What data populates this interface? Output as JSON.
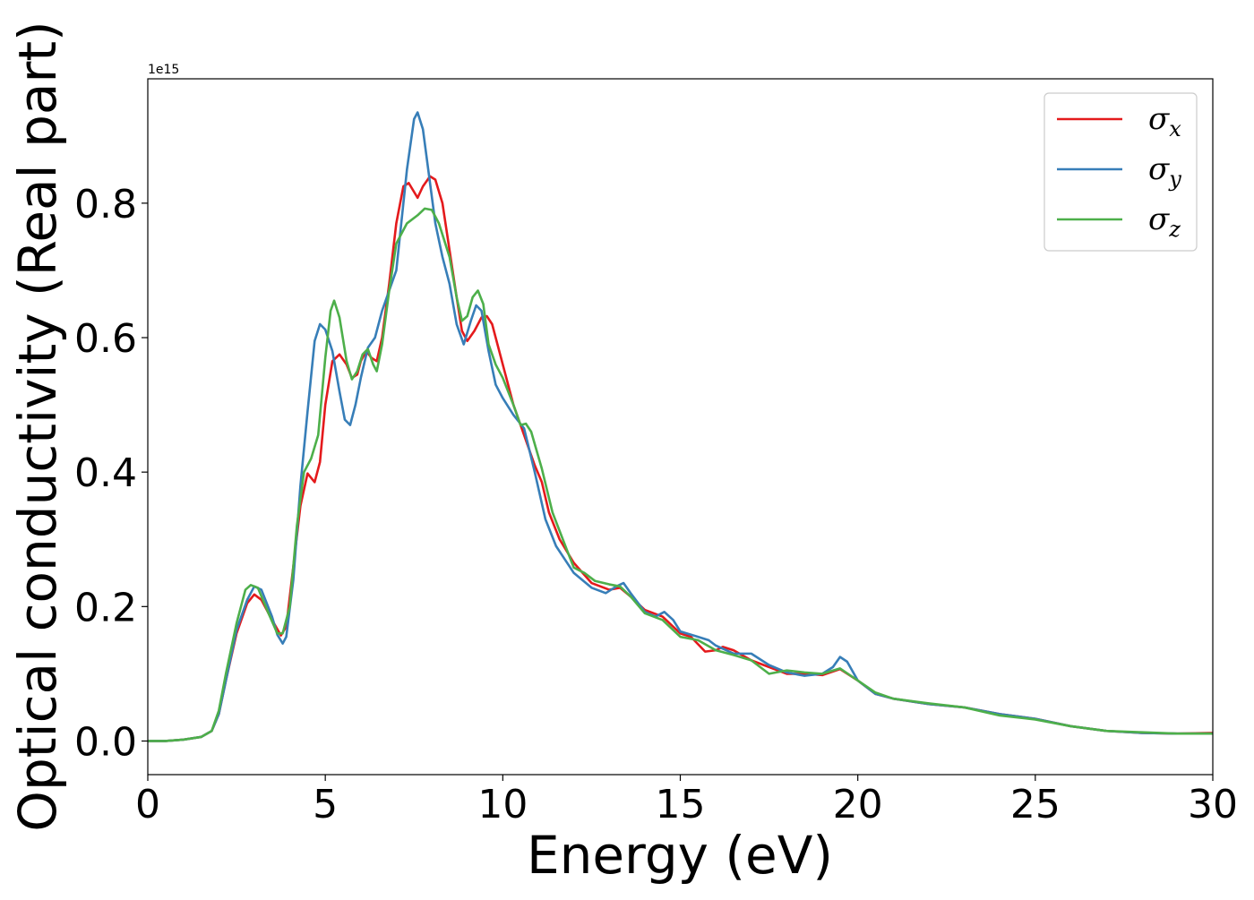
{
  "chart_data": {
    "type": "line",
    "title": "",
    "xlabel": "Energy (eV)",
    "ylabel": "Optical conductivity (Real part)",
    "y_offset_label": "1e15",
    "xlim": [
      0,
      30
    ],
    "ylim": [
      -0.05,
      0.985
    ],
    "xticks": [
      0,
      5,
      10,
      15,
      20,
      25,
      30
    ],
    "xtick_labels": [
      "0",
      "5",
      "10",
      "15",
      "20",
      "25",
      "30"
    ],
    "yticks": [
      0.0,
      0.2,
      0.4,
      0.6,
      0.8
    ],
    "ytick_labels": [
      "0.0",
      "0.2",
      "0.4",
      "0.6",
      "0.8"
    ],
    "grid": false,
    "legend_position": "top-right",
    "series": [
      {
        "name": "σx",
        "name_base": "σ",
        "name_sub": "x",
        "color": "#e41a1c",
        "points": [
          [
            0,
            0.0
          ],
          [
            0.5,
            0.0
          ],
          [
            1.0,
            0.002
          ],
          [
            1.5,
            0.006
          ],
          [
            1.8,
            0.015
          ],
          [
            2.0,
            0.04
          ],
          [
            2.2,
            0.09
          ],
          [
            2.5,
            0.16
          ],
          [
            2.8,
            0.205
          ],
          [
            3.0,
            0.218
          ],
          [
            3.2,
            0.21
          ],
          [
            3.5,
            0.18
          ],
          [
            3.75,
            0.157
          ],
          [
            3.9,
            0.17
          ],
          [
            4.1,
            0.26
          ],
          [
            4.3,
            0.35
          ],
          [
            4.5,
            0.398
          ],
          [
            4.7,
            0.385
          ],
          [
            4.85,
            0.415
          ],
          [
            5.0,
            0.5
          ],
          [
            5.2,
            0.565
          ],
          [
            5.4,
            0.575
          ],
          [
            5.6,
            0.56
          ],
          [
            5.75,
            0.54
          ],
          [
            5.9,
            0.545
          ],
          [
            6.0,
            0.565
          ],
          [
            6.15,
            0.58
          ],
          [
            6.3,
            0.57
          ],
          [
            6.45,
            0.565
          ],
          [
            6.6,
            0.6
          ],
          [
            6.8,
            0.68
          ],
          [
            7.0,
            0.77
          ],
          [
            7.2,
            0.825
          ],
          [
            7.35,
            0.83
          ],
          [
            7.6,
            0.808
          ],
          [
            7.75,
            0.825
          ],
          [
            7.95,
            0.84
          ],
          [
            8.1,
            0.835
          ],
          [
            8.3,
            0.8
          ],
          [
            8.5,
            0.73
          ],
          [
            8.7,
            0.66
          ],
          [
            8.85,
            0.61
          ],
          [
            9.0,
            0.595
          ],
          [
            9.2,
            0.61
          ],
          [
            9.4,
            0.63
          ],
          [
            9.55,
            0.632
          ],
          [
            9.7,
            0.62
          ],
          [
            10.0,
            0.56
          ],
          [
            10.3,
            0.5
          ],
          [
            10.6,
            0.455
          ],
          [
            10.9,
            0.41
          ],
          [
            11.1,
            0.385
          ],
          [
            11.3,
            0.34
          ],
          [
            11.6,
            0.3
          ],
          [
            12.0,
            0.265
          ],
          [
            12.5,
            0.235
          ],
          [
            13.0,
            0.225
          ],
          [
            13.3,
            0.228
          ],
          [
            13.6,
            0.215
          ],
          [
            14.0,
            0.195
          ],
          [
            14.5,
            0.185
          ],
          [
            15.0,
            0.16
          ],
          [
            15.3,
            0.155
          ],
          [
            15.7,
            0.133
          ],
          [
            16.0,
            0.135
          ],
          [
            16.2,
            0.14
          ],
          [
            16.5,
            0.135
          ],
          [
            17.0,
            0.12
          ],
          [
            17.5,
            0.11
          ],
          [
            18.0,
            0.1
          ],
          [
            18.5,
            0.1
          ],
          [
            19.0,
            0.098
          ],
          [
            19.5,
            0.107
          ],
          [
            20.0,
            0.09
          ],
          [
            20.5,
            0.07
          ],
          [
            21.0,
            0.063
          ],
          [
            22.0,
            0.055
          ],
          [
            23.0,
            0.05
          ],
          [
            24.0,
            0.04
          ],
          [
            25.0,
            0.033
          ],
          [
            26.0,
            0.022
          ],
          [
            27.0,
            0.015
          ],
          [
            28.0,
            0.012
          ],
          [
            29.0,
            0.011
          ],
          [
            30.0,
            0.012
          ]
        ]
      },
      {
        "name": "σy",
        "name_base": "σ",
        "name_sub": "y",
        "color": "#377eb8",
        "points": [
          [
            0,
            0.0
          ],
          [
            0.5,
            0.0
          ],
          [
            1.0,
            0.002
          ],
          [
            1.5,
            0.006
          ],
          [
            1.8,
            0.015
          ],
          [
            2.0,
            0.04
          ],
          [
            2.2,
            0.09
          ],
          [
            2.5,
            0.165
          ],
          [
            2.8,
            0.21
          ],
          [
            3.0,
            0.23
          ],
          [
            3.2,
            0.225
          ],
          [
            3.5,
            0.185
          ],
          [
            3.65,
            0.158
          ],
          [
            3.8,
            0.145
          ],
          [
            3.9,
            0.155
          ],
          [
            4.1,
            0.24
          ],
          [
            4.3,
            0.38
          ],
          [
            4.5,
            0.49
          ],
          [
            4.7,
            0.595
          ],
          [
            4.85,
            0.62
          ],
          [
            5.0,
            0.612
          ],
          [
            5.2,
            0.58
          ],
          [
            5.4,
            0.52
          ],
          [
            5.55,
            0.478
          ],
          [
            5.7,
            0.47
          ],
          [
            5.85,
            0.5
          ],
          [
            6.0,
            0.54
          ],
          [
            6.2,
            0.585
          ],
          [
            6.4,
            0.6
          ],
          [
            6.6,
            0.64
          ],
          [
            6.8,
            0.67
          ],
          [
            7.0,
            0.7
          ],
          [
            7.1,
            0.75
          ],
          [
            7.3,
            0.85
          ],
          [
            7.5,
            0.925
          ],
          [
            7.6,
            0.935
          ],
          [
            7.75,
            0.91
          ],
          [
            7.9,
            0.85
          ],
          [
            8.1,
            0.77
          ],
          [
            8.3,
            0.72
          ],
          [
            8.5,
            0.68
          ],
          [
            8.7,
            0.62
          ],
          [
            8.9,
            0.59
          ],
          [
            9.1,
            0.625
          ],
          [
            9.25,
            0.648
          ],
          [
            9.4,
            0.64
          ],
          [
            9.6,
            0.58
          ],
          [
            9.8,
            0.53
          ],
          [
            10.0,
            0.51
          ],
          [
            10.3,
            0.485
          ],
          [
            10.6,
            0.465
          ],
          [
            10.9,
            0.4
          ],
          [
            11.2,
            0.33
          ],
          [
            11.5,
            0.29
          ],
          [
            12.0,
            0.25
          ],
          [
            12.5,
            0.228
          ],
          [
            12.9,
            0.22
          ],
          [
            13.2,
            0.23
          ],
          [
            13.4,
            0.235
          ],
          [
            13.6,
            0.22
          ],
          [
            14.0,
            0.192
          ],
          [
            14.3,
            0.185
          ],
          [
            14.55,
            0.192
          ],
          [
            14.8,
            0.18
          ],
          [
            15.0,
            0.163
          ],
          [
            15.5,
            0.155
          ],
          [
            15.8,
            0.15
          ],
          [
            16.0,
            0.142
          ],
          [
            16.5,
            0.13
          ],
          [
            17.0,
            0.13
          ],
          [
            17.5,
            0.113
          ],
          [
            18.0,
            0.102
          ],
          [
            18.5,
            0.097
          ],
          [
            19.0,
            0.1
          ],
          [
            19.3,
            0.11
          ],
          [
            19.5,
            0.125
          ],
          [
            19.7,
            0.118
          ],
          [
            20.0,
            0.09
          ],
          [
            20.5,
            0.07
          ],
          [
            21.0,
            0.063
          ],
          [
            22.0,
            0.055
          ],
          [
            23.0,
            0.05
          ],
          [
            24.0,
            0.04
          ],
          [
            25.0,
            0.033
          ],
          [
            26.0,
            0.022
          ],
          [
            27.0,
            0.015
          ],
          [
            28.0,
            0.012
          ],
          [
            29.0,
            0.011
          ],
          [
            30.0,
            0.011
          ]
        ]
      },
      {
        "name": "σz",
        "name_base": "σ",
        "name_sub": "z",
        "color": "#4daf4a",
        "points": [
          [
            0,
            0.0
          ],
          [
            0.5,
            0.0
          ],
          [
            1.0,
            0.002
          ],
          [
            1.5,
            0.006
          ],
          [
            1.8,
            0.015
          ],
          [
            2.0,
            0.045
          ],
          [
            2.2,
            0.1
          ],
          [
            2.5,
            0.175
          ],
          [
            2.75,
            0.225
          ],
          [
            2.9,
            0.232
          ],
          [
            3.1,
            0.228
          ],
          [
            3.4,
            0.19
          ],
          [
            3.65,
            0.16
          ],
          [
            3.8,
            0.16
          ],
          [
            4.0,
            0.2
          ],
          [
            4.2,
            0.32
          ],
          [
            4.4,
            0.4
          ],
          [
            4.6,
            0.42
          ],
          [
            4.8,
            0.455
          ],
          [
            5.0,
            0.57
          ],
          [
            5.15,
            0.64
          ],
          [
            5.25,
            0.655
          ],
          [
            5.4,
            0.63
          ],
          [
            5.6,
            0.565
          ],
          [
            5.75,
            0.538
          ],
          [
            5.9,
            0.55
          ],
          [
            6.05,
            0.575
          ],
          [
            6.2,
            0.583
          ],
          [
            6.35,
            0.56
          ],
          [
            6.45,
            0.55
          ],
          [
            6.6,
            0.59
          ],
          [
            6.8,
            0.67
          ],
          [
            7.0,
            0.74
          ],
          [
            7.3,
            0.77
          ],
          [
            7.6,
            0.782
          ],
          [
            7.8,
            0.792
          ],
          [
            8.0,
            0.79
          ],
          [
            8.2,
            0.77
          ],
          [
            8.5,
            0.72
          ],
          [
            8.7,
            0.66
          ],
          [
            8.85,
            0.625
          ],
          [
            9.0,
            0.632
          ],
          [
            9.15,
            0.66
          ],
          [
            9.3,
            0.67
          ],
          [
            9.45,
            0.65
          ],
          [
            9.6,
            0.59
          ],
          [
            9.8,
            0.56
          ],
          [
            10.0,
            0.54
          ],
          [
            10.3,
            0.5
          ],
          [
            10.5,
            0.47
          ],
          [
            10.65,
            0.472
          ],
          [
            10.8,
            0.46
          ],
          [
            11.1,
            0.405
          ],
          [
            11.4,
            0.34
          ],
          [
            11.8,
            0.285
          ],
          [
            12.0,
            0.258
          ],
          [
            12.3,
            0.25
          ],
          [
            12.6,
            0.238
          ],
          [
            13.0,
            0.233
          ],
          [
            13.3,
            0.23
          ],
          [
            13.6,
            0.215
          ],
          [
            14.0,
            0.19
          ],
          [
            14.5,
            0.18
          ],
          [
            15.0,
            0.155
          ],
          [
            15.5,
            0.15
          ],
          [
            16.0,
            0.135
          ],
          [
            16.5,
            0.128
          ],
          [
            17.0,
            0.12
          ],
          [
            17.5,
            0.1
          ],
          [
            18.0,
            0.105
          ],
          [
            18.5,
            0.102
          ],
          [
            19.0,
            0.1
          ],
          [
            19.5,
            0.108
          ],
          [
            20.0,
            0.09
          ],
          [
            20.5,
            0.072
          ],
          [
            21.0,
            0.063
          ],
          [
            22.0,
            0.056
          ],
          [
            23.0,
            0.05
          ],
          [
            24.0,
            0.038
          ],
          [
            25.0,
            0.032
          ],
          [
            26.0,
            0.022
          ],
          [
            27.0,
            0.015
          ],
          [
            28.0,
            0.013
          ],
          [
            29.0,
            0.011
          ],
          [
            30.0,
            0.011
          ]
        ]
      }
    ]
  }
}
